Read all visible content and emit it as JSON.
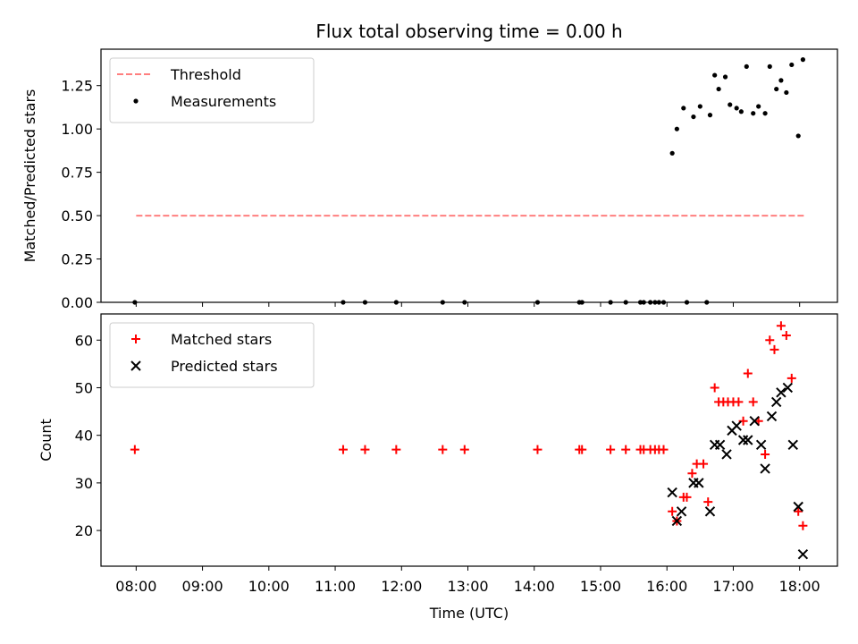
{
  "figure": {
    "title": "Flux total observing time = 0.00 h"
  },
  "chart_data": [
    {
      "type": "scatter",
      "title": "Flux total observing time = 0.00 h",
      "xlabel": "",
      "ylabel": "Matched/Predicted stars",
      "xlim": [
        7.47,
        18.57
      ],
      "ylim": [
        0.0,
        1.46
      ],
      "x_ticks": [
        "08:00",
        "09:00",
        "10:00",
        "11:00",
        "12:00",
        "13:00",
        "14:00",
        "15:00",
        "16:00",
        "17:00",
        "18:00"
      ],
      "y_ticks": [
        "0.00",
        "0.25",
        "0.50",
        "0.75",
        "1.00",
        "1.25"
      ],
      "legend_position": "upper-left",
      "threshold": {
        "name": "Threshold",
        "color": "#ff7f7f",
        "x": [
          8.0,
          18.08
        ],
        "y": 0.5
      },
      "series": [
        {
          "name": "Measurements",
          "color": "#000000",
          "marker": "dot",
          "points": [
            [
              7.98,
              0.0
            ],
            [
              11.12,
              0.0
            ],
            [
              11.45,
              0.0
            ],
            [
              11.92,
              0.0
            ],
            [
              12.62,
              0.0
            ],
            [
              12.95,
              0.0
            ],
            [
              14.05,
              0.0
            ],
            [
              14.68,
              0.0
            ],
            [
              14.72,
              0.0
            ],
            [
              15.15,
              0.0
            ],
            [
              15.38,
              0.0
            ],
            [
              15.6,
              0.0
            ],
            [
              15.65,
              0.0
            ],
            [
              15.75,
              0.0
            ],
            [
              15.82,
              0.0
            ],
            [
              15.88,
              0.0
            ],
            [
              15.95,
              0.0
            ],
            [
              16.3,
              0.0
            ],
            [
              16.6,
              0.0
            ],
            [
              16.08,
              0.86
            ],
            [
              16.15,
              1.0
            ],
            [
              16.25,
              1.12
            ],
            [
              16.4,
              1.07
            ],
            [
              16.5,
              1.13
            ],
            [
              16.65,
              1.08
            ],
            [
              16.72,
              1.31
            ],
            [
              16.78,
              1.23
            ],
            [
              16.88,
              1.3
            ],
            [
              16.95,
              1.14
            ],
            [
              17.05,
              1.12
            ],
            [
              17.12,
              1.1
            ],
            [
              17.2,
              1.36
            ],
            [
              17.3,
              1.09
            ],
            [
              17.38,
              1.13
            ],
            [
              17.48,
              1.09
            ],
            [
              17.55,
              1.36
            ],
            [
              17.65,
              1.23
            ],
            [
              17.72,
              1.28
            ],
            [
              17.8,
              1.21
            ],
            [
              17.88,
              1.37
            ],
            [
              17.98,
              0.96
            ],
            [
              18.05,
              1.4
            ]
          ]
        }
      ]
    },
    {
      "type": "scatter",
      "title": "",
      "xlabel": "Time (UTC)",
      "ylabel": "Count",
      "xlim": [
        7.47,
        18.57
      ],
      "ylim": [
        12.5,
        65.5
      ],
      "x_ticks": [
        "08:00",
        "09:00",
        "10:00",
        "11:00",
        "12:00",
        "13:00",
        "14:00",
        "15:00",
        "16:00",
        "17:00",
        "18:00"
      ],
      "y_ticks": [
        "20",
        "30",
        "40",
        "50",
        "60"
      ],
      "legend_position": "upper-left",
      "series": [
        {
          "name": "Matched stars",
          "color": "#ff0000",
          "marker": "plus",
          "points": [
            [
              7.98,
              37
            ],
            [
              11.12,
              37
            ],
            [
              11.45,
              37
            ],
            [
              11.92,
              37
            ],
            [
              12.62,
              37
            ],
            [
              12.95,
              37
            ],
            [
              14.05,
              37
            ],
            [
              14.68,
              37
            ],
            [
              14.72,
              37
            ],
            [
              15.15,
              37
            ],
            [
              15.38,
              37
            ],
            [
              15.6,
              37
            ],
            [
              15.65,
              37
            ],
            [
              15.75,
              37
            ],
            [
              15.82,
              37
            ],
            [
              15.88,
              37
            ],
            [
              15.95,
              37
            ],
            [
              16.08,
              24
            ],
            [
              16.15,
              22
            ],
            [
              16.25,
              27
            ],
            [
              16.3,
              27
            ],
            [
              16.38,
              32
            ],
            [
              16.45,
              34
            ],
            [
              16.55,
              34
            ],
            [
              16.62,
              26
            ],
            [
              16.72,
              50
            ],
            [
              16.78,
              47
            ],
            [
              16.85,
              47
            ],
            [
              16.92,
              47
            ],
            [
              17.0,
              47
            ],
            [
              17.08,
              47
            ],
            [
              17.15,
              43
            ],
            [
              17.22,
              53
            ],
            [
              17.3,
              47
            ],
            [
              17.38,
              43
            ],
            [
              17.48,
              36
            ],
            [
              17.55,
              60
            ],
            [
              17.62,
              58
            ],
            [
              17.72,
              63
            ],
            [
              17.8,
              61
            ],
            [
              17.88,
              52
            ],
            [
              17.98,
              24
            ],
            [
              18.05,
              21
            ]
          ]
        },
        {
          "name": "Predicted stars",
          "color": "#000000",
          "marker": "x",
          "points": [
            [
              16.08,
              28
            ],
            [
              16.15,
              22
            ],
            [
              16.22,
              24
            ],
            [
              16.4,
              30
            ],
            [
              16.48,
              30
            ],
            [
              16.65,
              24
            ],
            [
              16.72,
              38
            ],
            [
              16.8,
              38
            ],
            [
              16.9,
              36
            ],
            [
              16.98,
              41
            ],
            [
              17.05,
              42
            ],
            [
              17.15,
              39
            ],
            [
              17.22,
              39
            ],
            [
              17.32,
              43
            ],
            [
              17.42,
              38
            ],
            [
              17.48,
              33
            ],
            [
              17.58,
              44
            ],
            [
              17.65,
              47
            ],
            [
              17.72,
              49
            ],
            [
              17.82,
              50
            ],
            [
              17.9,
              38
            ],
            [
              17.98,
              25
            ],
            [
              18.05,
              15
            ]
          ]
        }
      ]
    }
  ]
}
